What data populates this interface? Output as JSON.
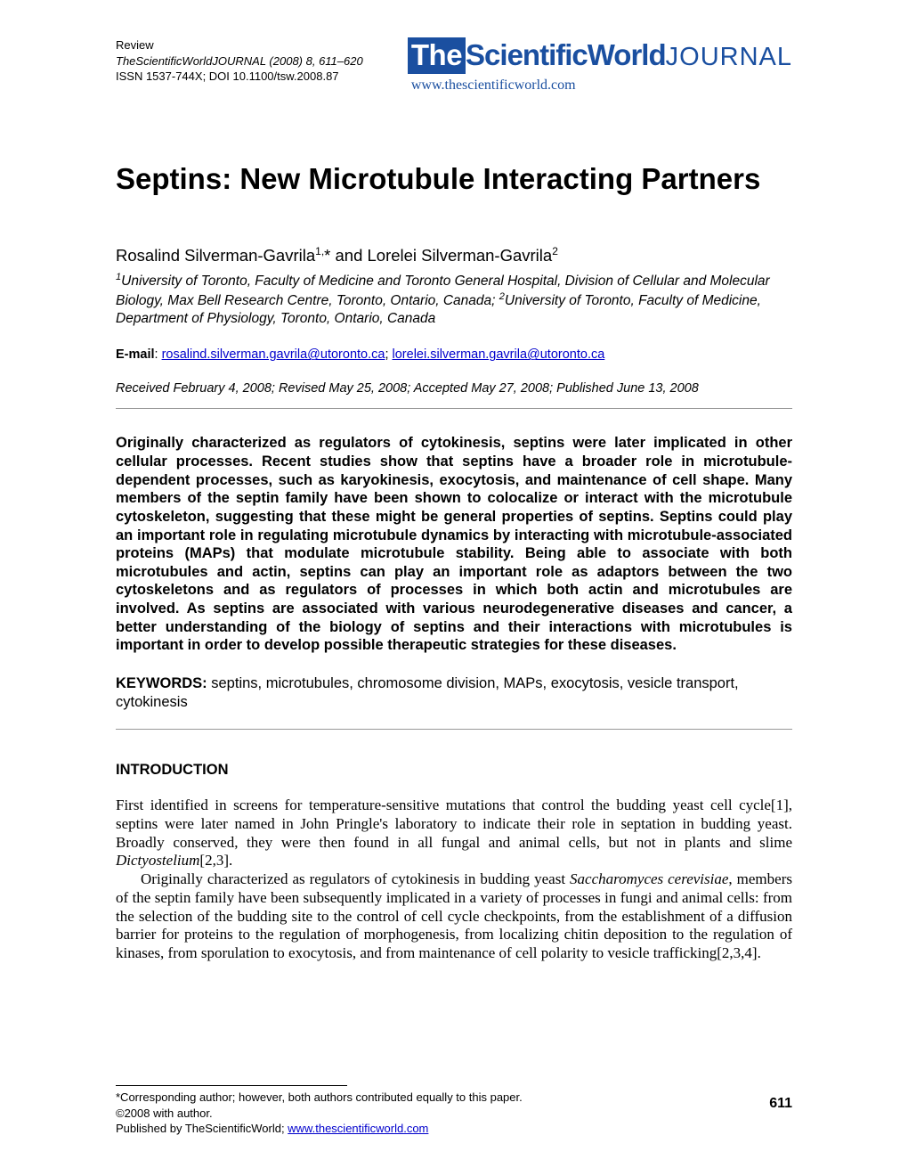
{
  "header": {
    "article_type": "Review",
    "journal_line": "TheScientificWorldJOURNAL (2008) 8, 611–620",
    "issn_doi": "ISSN 1537-744X; DOI 10.1100/tsw.2008.87",
    "logo_the": "The",
    "logo_scientific": "ScientificWorld",
    "logo_journal": "JOURNAL",
    "logo_url": "www.thescientificworld.com",
    "logo_bg": "#1a4fa0",
    "logo_color": "#1a4fa0"
  },
  "title": "Septins: New Microtubule Interacting Partners",
  "authors_html": "Rosalind Silverman-Gavrila",
  "authors_sup1": "1,",
  "authors_star": "*",
  "authors_and": " and Lorelei Silverman-Gavrila",
  "authors_sup2": "2",
  "affiliations": "University of Toronto, Faculty of Medicine and Toronto General Hospital, Division of Cellular and Molecular Biology, Max Bell Research Centre, Toronto, Ontario, Canada; ",
  "affiliations2": "University of Toronto, Faculty of Medicine, Department of Physiology, Toronto, Ontario, Canada",
  "aff_sup1": "1",
  "aff_sup2": "2",
  "email_label": "E-mail",
  "email_sep": ": ",
  "email1": "rosalind.silverman.gavrila@utoronto.ca",
  "email_semi": "; ",
  "email2": "lorelei.silverman.gavrila@utoronto.ca",
  "dates": "Received February 4, 2008; Revised May 25, 2008; Accepted May 27, 2008; Published June 13, 2008",
  "abstract": "Originally characterized as regulators of cytokinesis, septins were later implicated in other cellular processes. Recent studies show that septins have a broader role in microtubule-dependent processes, such as karyokinesis, exocytosis, and maintenance of cell shape. Many members of the septin family have been shown to colocalize or interact with the microtubule cytoskeleton, suggesting that these might be general properties of septins. Septins could play an important role in regulating microtubule dynamics by interacting with microtubule-associated proteins (MAPs) that modulate microtubule stability. Being able to associate with both microtubules and actin, septins can play an important role as adaptors between the two cytoskeletons and as regulators of processes in which both actin and microtubules are involved. As septins are associated with various neurodegenerative diseases and cancer, a better understanding of the biology of septins and their interactions with microtubules is important in order to develop possible therapeutic strategies for these diseases.",
  "keywords_label": "KEYWORDS:",
  "keywords": " septins, microtubules, chromosome division, MAPs, exocytosis, vesicle transport, cytokinesis",
  "section_intro": "INTRODUCTION",
  "para1_a": "First identified in screens for temperature-sensitive mutations that control the budding yeast cell cycle[1], septins were later named in John Pringle's laboratory to indicate their role in septation in budding yeast. Broadly conserved, they were then found in all fungal and animal cells, but not in plants and slime ",
  "para1_em": "Dictyostelium",
  "para1_b": "[2,3].",
  "para2_a": "Originally characterized as regulators of cytokinesis in budding yeast ",
  "para2_em": "Saccharomyces cerevisiae",
  "para2_b": ", members of the septin family have been subsequently implicated in a variety of processes in fungi and animal cells: from the selection of the budding site to the control of cell cycle checkpoints, from the establishment of a diffusion barrier for proteins to the regulation of morphogenesis, from localizing chitin deposition to the regulation of kinases, from sporulation to exocytosis, and from maintenance of cell polarity to vesicle trafficking[2,3,4].",
  "footer": {
    "corresponding": "*Corresponding author; however, both authors contributed equally to this paper.",
    "copyright": "©2008 with author.",
    "published_pre": "Published by TheScientificWorld; ",
    "published_link": "www.thescientificworld.com"
  },
  "page_number": "611"
}
